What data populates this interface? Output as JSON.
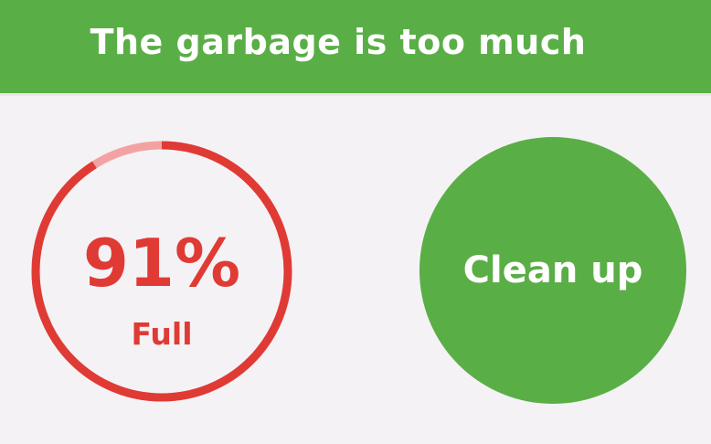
{
  "header": {
    "title": "The garbage is too much"
  },
  "storage_gauge": {
    "percent_text": "91%",
    "caption": "Full",
    "fill_fraction": 0.91
  },
  "clean_button": {
    "label": "Clean up"
  },
  "colors": {
    "brand_green": "#5aae46",
    "alert_red": "#e03a35",
    "ring_track_pink": "#f2a3a1",
    "background": "#f4f2f5"
  }
}
